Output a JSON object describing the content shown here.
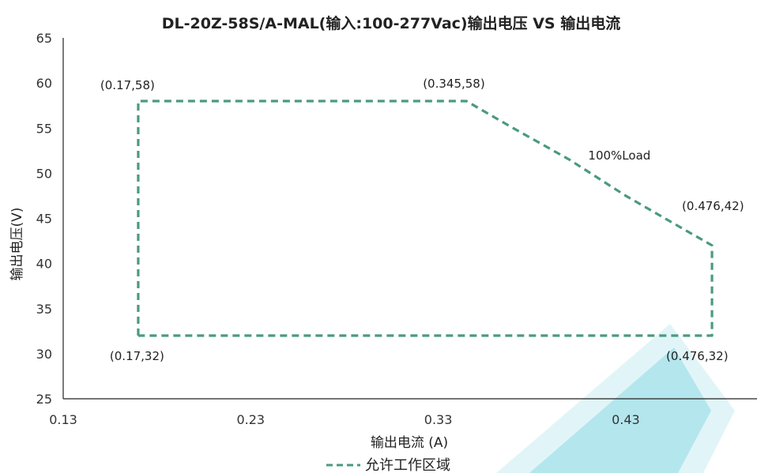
{
  "chart_data": {
    "type": "line",
    "title": "DL-20Z-58S/A-MAL(输入:100-277Vac)输出电压 VS 输出电流",
    "xlabel": "输出电流 (A)",
    "ylabel": "输出电压(V)",
    "xlim": [
      0.13,
      0.5
    ],
    "ylim": [
      25,
      65
    ],
    "xticks": [
      0.13,
      0.23,
      0.33,
      0.43
    ],
    "xtick_labels": [
      "0.13",
      "0.23",
      "0.33",
      "0.43"
    ],
    "yticks": [
      25,
      30,
      35,
      40,
      45,
      50,
      55,
      60,
      65
    ],
    "yticks_labels": [
      "25",
      "30",
      "35",
      "40",
      "45",
      "50",
      "55",
      "60",
      "65"
    ],
    "grid": false,
    "legend_position": "bottom",
    "series": [
      {
        "name": "允许工作区域",
        "style": "dashed",
        "color": "#4a9a7f",
        "points": [
          {
            "x": 0.17,
            "y": 32
          },
          {
            "x": 0.17,
            "y": 58
          },
          {
            "x": 0.345,
            "y": 58
          },
          {
            "x": 0.37,
            "y": 55
          },
          {
            "x": 0.4,
            "y": 51.5
          },
          {
            "x": 0.43,
            "y": 47.5
          },
          {
            "x": 0.455,
            "y": 44.5
          },
          {
            "x": 0.476,
            "y": 42
          },
          {
            "x": 0.476,
            "y": 32
          },
          {
            "x": 0.17,
            "y": 32
          }
        ]
      }
    ],
    "annotations": [
      {
        "text": "(0.17,58)",
        "x": 0.17,
        "y": 58
      },
      {
        "text": "(0.345,58)",
        "x": 0.345,
        "y": 58
      },
      {
        "text": "100%Load",
        "x": 0.41,
        "y": 51.5
      },
      {
        "text": "(0.476,42)",
        "x": 0.476,
        "y": 42
      },
      {
        "text": "(0.17,32)",
        "x": 0.17,
        "y": 32
      },
      {
        "text": "(0.476,32)",
        "x": 0.476,
        "y": 32
      }
    ],
    "watermark_color": "#17b3c9"
  }
}
